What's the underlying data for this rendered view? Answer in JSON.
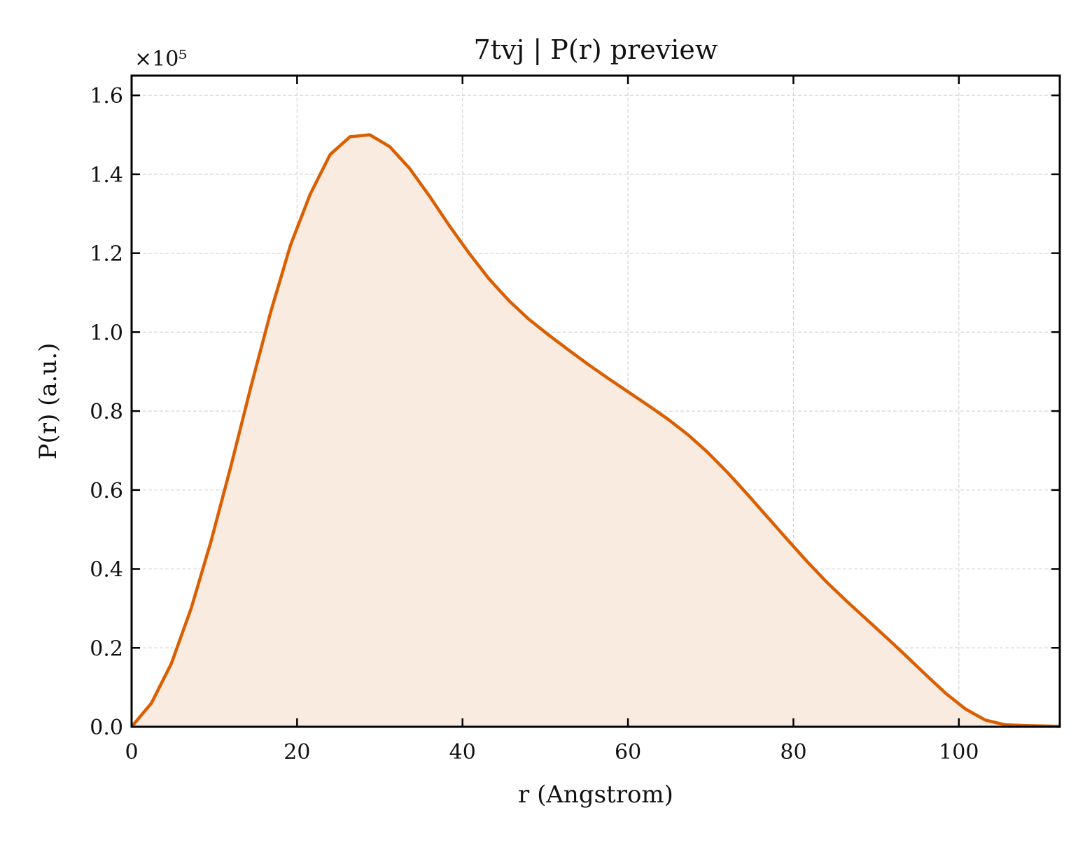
{
  "chart_data": {
    "type": "area",
    "title": "7tvj | P(r) preview",
    "xlabel": "r (Angstrom)",
    "ylabel": "P(r) (a.u.)",
    "y_offset_label": "×10⁵",
    "y_scale": 100000,
    "xlim": [
      0,
      112.2
    ],
    "ylim": [
      0,
      1.65
    ],
    "xticks": [
      0,
      20,
      40,
      60,
      80,
      100
    ],
    "xtick_labels": [
      "0",
      "20",
      "40",
      "60",
      "80",
      "100"
    ],
    "yticks": [
      0.0,
      0.2,
      0.4,
      0.6,
      0.8,
      1.0,
      1.2,
      1.4,
      1.6
    ],
    "ytick_labels": [
      "0.0",
      "0.2",
      "0.4",
      "0.6",
      "0.8",
      "1.0",
      "1.2",
      "1.4",
      "1.6"
    ],
    "grid": true,
    "colors": {
      "line": "#d95f02",
      "fill": "#f9ebe0"
    },
    "series": [
      {
        "x": [
          0,
          2.4,
          4.8,
          7.2,
          9.6,
          12.0,
          14.4,
          16.8,
          19.2,
          21.6,
          24.0,
          26.4,
          28.8,
          31.2,
          33.6,
          36.0,
          38.4,
          40.8,
          43.2,
          45.6,
          48.0,
          50.4,
          52.8,
          55.2,
          57.6,
          60.0,
          62.4,
          64.8,
          67.2,
          69.6,
          72.0,
          74.4,
          76.8,
          79.2,
          81.6,
          84.0,
          86.4,
          88.8,
          91.2,
          93.6,
          96.0,
          98.4,
          100.8,
          103.2,
          105.6,
          108.0,
          110.4,
          112.2
        ],
        "values": [
          0.0,
          0.06,
          0.16,
          0.3,
          0.47,
          0.66,
          0.86,
          1.05,
          1.22,
          1.35,
          1.45,
          1.495,
          1.5,
          1.47,
          1.415,
          1.345,
          1.27,
          1.2,
          1.135,
          1.08,
          1.033,
          0.993,
          0.955,
          0.918,
          0.883,
          0.849,
          0.815,
          0.78,
          0.741,
          0.696,
          0.645,
          0.59,
          0.533,
          0.476,
          0.42,
          0.367,
          0.319,
          0.273,
          0.227,
          0.18,
          0.132,
          0.085,
          0.045,
          0.017,
          0.005,
          0.003,
          0.002,
          0.001
        ]
      }
    ]
  }
}
